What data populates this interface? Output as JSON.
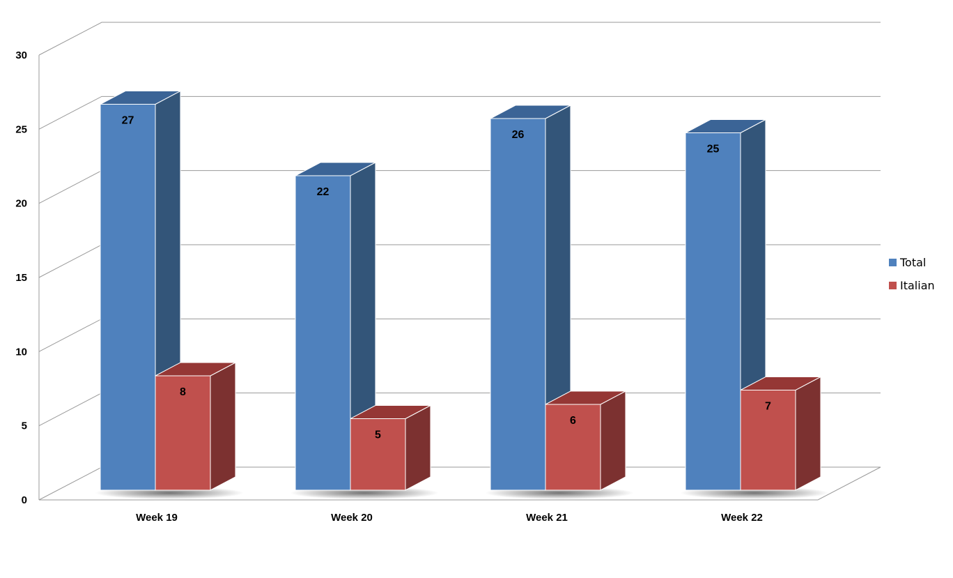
{
  "chart_data": {
    "type": "bar",
    "style": "3d-clustered-column",
    "categories": [
      "Week 19",
      "Week 20",
      "Week 21",
      "Week 22"
    ],
    "series": [
      {
        "name": "Total",
        "values": [
          27,
          22,
          26,
          25
        ],
        "color": "#4f81bd",
        "side_color": "#335579",
        "top_color": "#3b6496"
      },
      {
        "name": "Italian",
        "values": [
          8,
          5,
          6,
          7
        ],
        "color": "#c0504d",
        "side_color": "#7c3130",
        "top_color": "#953735"
      }
    ],
    "ylim": [
      0,
      30
    ],
    "yticks": [
      "0",
      "5",
      "10",
      "15",
      "20",
      "25",
      "30"
    ],
    "grid": true,
    "legend_position": "right",
    "data_labels": true
  }
}
